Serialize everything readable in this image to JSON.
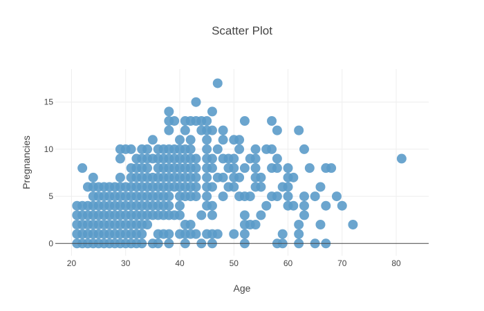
{
  "chart_data": {
    "type": "scatter",
    "title": "Scatter Plot",
    "xlabel": "Age",
    "ylabel": "Pregnancies",
    "xlim": [
      17,
      86
    ],
    "ylim": [
      -1.3,
      18.5
    ],
    "x_ticks": [
      20,
      30,
      40,
      50,
      60,
      70,
      80
    ],
    "y_ticks": [
      0,
      5,
      10,
      15
    ],
    "grid": true,
    "marker_color": "#5b9bc9",
    "series": [
      {
        "points": [
          [
            21,
            0
          ],
          [
            21,
            1
          ],
          [
            21,
            2
          ],
          [
            21,
            3
          ],
          [
            21,
            4
          ],
          [
            22,
            0
          ],
          [
            22,
            1
          ],
          [
            22,
            2
          ],
          [
            22,
            3
          ],
          [
            22,
            4
          ],
          [
            22,
            8
          ],
          [
            23,
            0
          ],
          [
            23,
            1
          ],
          [
            23,
            2
          ],
          [
            23,
            3
          ],
          [
            23,
            4
          ],
          [
            23,
            6
          ],
          [
            24,
            0
          ],
          [
            24,
            1
          ],
          [
            24,
            2
          ],
          [
            24,
            3
          ],
          [
            24,
            4
          ],
          [
            24,
            5
          ],
          [
            24,
            6
          ],
          [
            24,
            7
          ],
          [
            25,
            0
          ],
          [
            25,
            1
          ],
          [
            25,
            2
          ],
          [
            25,
            3
          ],
          [
            25,
            4
          ],
          [
            25,
            5
          ],
          [
            25,
            6
          ],
          [
            26,
            0
          ],
          [
            26,
            1
          ],
          [
            26,
            2
          ],
          [
            26,
            3
          ],
          [
            26,
            4
          ],
          [
            26,
            5
          ],
          [
            26,
            6
          ],
          [
            27,
            0
          ],
          [
            27,
            1
          ],
          [
            27,
            2
          ],
          [
            27,
            3
          ],
          [
            27,
            4
          ],
          [
            27,
            5
          ],
          [
            27,
            6
          ],
          [
            28,
            0
          ],
          [
            28,
            1
          ],
          [
            28,
            2
          ],
          [
            28,
            3
          ],
          [
            28,
            4
          ],
          [
            28,
            5
          ],
          [
            28,
            6
          ],
          [
            29,
            0
          ],
          [
            29,
            1
          ],
          [
            29,
            2
          ],
          [
            29,
            3
          ],
          [
            29,
            4
          ],
          [
            29,
            5
          ],
          [
            29,
            6
          ],
          [
            29,
            7
          ],
          [
            29,
            9
          ],
          [
            29,
            10
          ],
          [
            30,
            0
          ],
          [
            30,
            1
          ],
          [
            30,
            2
          ],
          [
            30,
            3
          ],
          [
            30,
            4
          ],
          [
            30,
            5
          ],
          [
            30,
            6
          ],
          [
            30,
            10
          ],
          [
            31,
            0
          ],
          [
            31,
            1
          ],
          [
            31,
            2
          ],
          [
            31,
            3
          ],
          [
            31,
            4
          ],
          [
            31,
            5
          ],
          [
            31,
            6
          ],
          [
            31,
            7
          ],
          [
            31,
            8
          ],
          [
            31,
            10
          ],
          [
            32,
            0
          ],
          [
            32,
            1
          ],
          [
            32,
            2
          ],
          [
            32,
            3
          ],
          [
            32,
            4
          ],
          [
            32,
            5
          ],
          [
            32,
            6
          ],
          [
            32,
            7
          ],
          [
            32,
            8
          ],
          [
            32,
            9
          ],
          [
            33,
            0
          ],
          [
            33,
            1
          ],
          [
            33,
            2
          ],
          [
            33,
            3
          ],
          [
            33,
            4
          ],
          [
            33,
            5
          ],
          [
            33,
            6
          ],
          [
            33,
            7
          ],
          [
            33,
            8
          ],
          [
            33,
            9
          ],
          [
            33,
            10
          ],
          [
            34,
            2
          ],
          [
            34,
            3
          ],
          [
            34,
            4
          ],
          [
            34,
            5
          ],
          [
            34,
            6
          ],
          [
            34,
            7
          ],
          [
            34,
            8
          ],
          [
            34,
            9
          ],
          [
            34,
            10
          ],
          [
            35,
            0
          ],
          [
            35,
            3
          ],
          [
            35,
            4
          ],
          [
            35,
            5
          ],
          [
            35,
            6
          ],
          [
            35,
            7
          ],
          [
            35,
            9
          ],
          [
            35,
            11
          ],
          [
            36,
            0
          ],
          [
            36,
            1
          ],
          [
            36,
            3
          ],
          [
            36,
            4
          ],
          [
            36,
            5
          ],
          [
            36,
            6
          ],
          [
            36,
            7
          ],
          [
            36,
            8
          ],
          [
            36,
            9
          ],
          [
            36,
            10
          ],
          [
            37,
            1
          ],
          [
            37,
            3
          ],
          [
            37,
            4
          ],
          [
            37,
            5
          ],
          [
            37,
            6
          ],
          [
            37,
            7
          ],
          [
            37,
            8
          ],
          [
            37,
            9
          ],
          [
            37,
            10
          ],
          [
            38,
            0
          ],
          [
            38,
            1
          ],
          [
            38,
            3
          ],
          [
            38,
            4
          ],
          [
            38,
            5
          ],
          [
            38,
            6
          ],
          [
            38,
            7
          ],
          [
            38,
            8
          ],
          [
            38,
            9
          ],
          [
            38,
            10
          ],
          [
            38,
            12
          ],
          [
            38,
            13
          ],
          [
            38,
            14
          ],
          [
            39,
            3
          ],
          [
            39,
            6
          ],
          [
            39,
            7
          ],
          [
            39,
            8
          ],
          [
            39,
            9
          ],
          [
            39,
            10
          ],
          [
            39,
            13
          ],
          [
            40,
            1
          ],
          [
            40,
            3
          ],
          [
            40,
            4
          ],
          [
            40,
            5
          ],
          [
            40,
            6
          ],
          [
            40,
            7
          ],
          [
            40,
            8
          ],
          [
            40,
            9
          ],
          [
            40,
            10
          ],
          [
            40,
            11
          ],
          [
            41,
            0
          ],
          [
            41,
            1
          ],
          [
            41,
            2
          ],
          [
            41,
            5
          ],
          [
            41,
            6
          ],
          [
            41,
            7
          ],
          [
            41,
            8
          ],
          [
            41,
            9
          ],
          [
            41,
            10
          ],
          [
            41,
            12
          ],
          [
            41,
            13
          ],
          [
            42,
            1
          ],
          [
            42,
            2
          ],
          [
            42,
            5
          ],
          [
            42,
            6
          ],
          [
            42,
            7
          ],
          [
            42,
            8
          ],
          [
            42,
            9
          ],
          [
            42,
            10
          ],
          [
            42,
            11
          ],
          [
            42,
            13
          ],
          [
            43,
            1
          ],
          [
            43,
            5
          ],
          [
            43,
            6
          ],
          [
            43,
            7
          ],
          [
            43,
            8
          ],
          [
            43,
            9
          ],
          [
            43,
            13
          ],
          [
            43,
            15
          ],
          [
            44,
            0
          ],
          [
            44,
            3
          ],
          [
            44,
            12
          ],
          [
            44,
            13
          ],
          [
            45,
            1
          ],
          [
            45,
            4
          ],
          [
            45,
            5
          ],
          [
            45,
            6
          ],
          [
            45,
            7
          ],
          [
            45,
            8
          ],
          [
            45,
            9
          ],
          [
            45,
            10
          ],
          [
            45,
            11
          ],
          [
            45,
            12
          ],
          [
            45,
            13
          ],
          [
            46,
            0
          ],
          [
            46,
            1
          ],
          [
            46,
            3
          ],
          [
            46,
            4
          ],
          [
            46,
            6
          ],
          [
            46,
            8
          ],
          [
            46,
            9
          ],
          [
            46,
            12
          ],
          [
            46,
            14
          ],
          [
            47,
            1
          ],
          [
            47,
            7
          ],
          [
            47,
            10
          ],
          [
            47,
            17
          ],
          [
            48,
            5
          ],
          [
            48,
            7
          ],
          [
            48,
            9
          ],
          [
            48,
            11
          ],
          [
            48,
            12
          ],
          [
            49,
            6
          ],
          [
            49,
            8
          ],
          [
            49,
            9
          ],
          [
            50,
            1
          ],
          [
            50,
            6
          ],
          [
            50,
            7
          ],
          [
            50,
            8
          ],
          [
            50,
            9
          ],
          [
            50,
            11
          ],
          [
            51,
            5
          ],
          [
            51,
            7
          ],
          [
            51,
            10
          ],
          [
            51,
            11
          ],
          [
            52,
            0
          ],
          [
            52,
            1
          ],
          [
            52,
            2
          ],
          [
            52,
            3
          ],
          [
            52,
            5
          ],
          [
            52,
            8
          ],
          [
            52,
            13
          ],
          [
            53,
            2
          ],
          [
            53,
            5
          ],
          [
            53,
            9
          ],
          [
            54,
            2
          ],
          [
            54,
            6
          ],
          [
            54,
            7
          ],
          [
            54,
            8
          ],
          [
            54,
            9
          ],
          [
            54,
            10
          ],
          [
            55,
            3
          ],
          [
            55,
            6
          ],
          [
            55,
            7
          ],
          [
            56,
            4
          ],
          [
            56,
            10
          ],
          [
            57,
            5
          ],
          [
            57,
            8
          ],
          [
            57,
            10
          ],
          [
            57,
            13
          ],
          [
            58,
            0
          ],
          [
            58,
            5
          ],
          [
            58,
            8
          ],
          [
            58,
            9
          ],
          [
            58,
            12
          ],
          [
            59,
            0
          ],
          [
            59,
            1
          ],
          [
            59,
            6
          ],
          [
            60,
            4
          ],
          [
            60,
            5
          ],
          [
            60,
            6
          ],
          [
            60,
            7
          ],
          [
            60,
            8
          ],
          [
            61,
            4
          ],
          [
            61,
            7
          ],
          [
            62,
            0
          ],
          [
            62,
            1
          ],
          [
            62,
            2
          ],
          [
            62,
            12
          ],
          [
            63,
            3
          ],
          [
            63,
            4
          ],
          [
            63,
            5
          ],
          [
            63,
            10
          ],
          [
            64,
            8
          ],
          [
            65,
            0
          ],
          [
            65,
            5
          ],
          [
            66,
            2
          ],
          [
            66,
            6
          ],
          [
            67,
            0
          ],
          [
            67,
            4
          ],
          [
            67,
            8
          ],
          [
            68,
            8
          ],
          [
            69,
            5
          ],
          [
            70,
            4
          ],
          [
            72,
            2
          ],
          [
            81,
            9
          ]
        ]
      }
    ]
  }
}
